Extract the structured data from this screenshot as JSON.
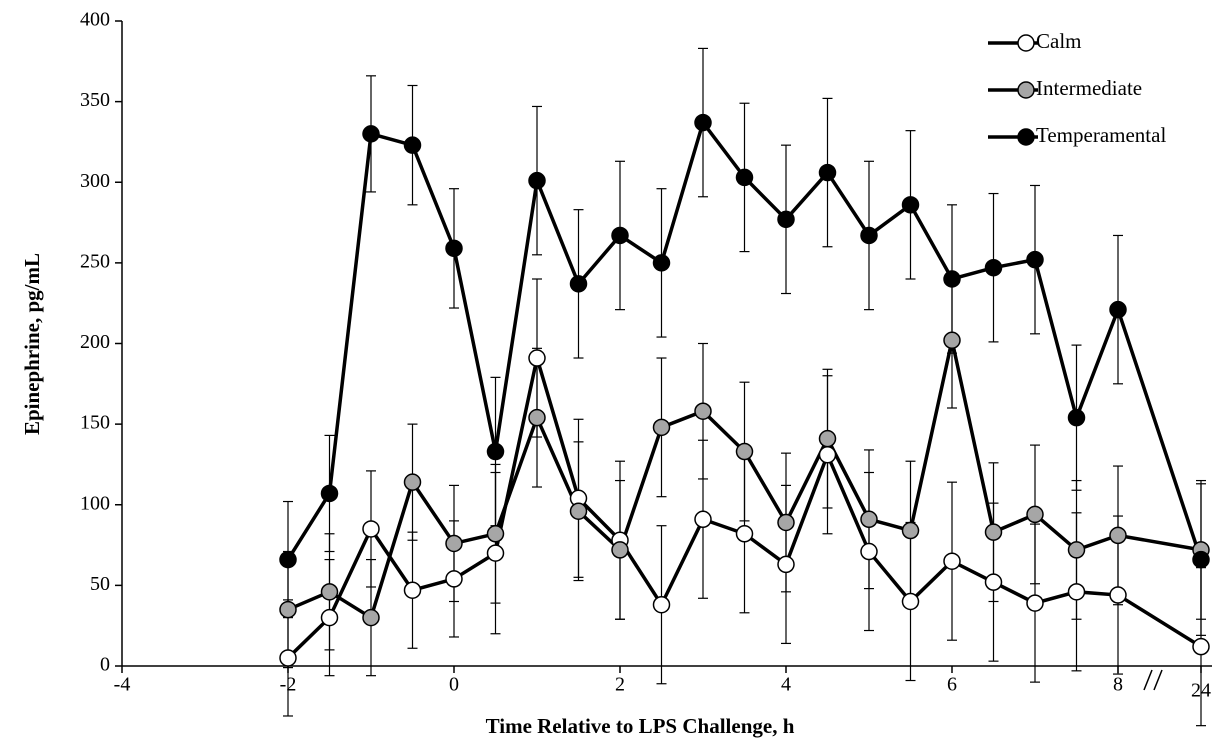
{
  "chart_data": {
    "type": "line",
    "xlabel": "Time Relative to LPS Challenge, h",
    "ylabel": "Epinephrine, pg/mL",
    "x": [
      -2,
      -1.5,
      -1,
      -0.5,
      0,
      0.5,
      1,
      1.5,
      2,
      2.5,
      3,
      3.5,
      4,
      4.5,
      5,
      5.5,
      6,
      6.5,
      7,
      7.5,
      8,
      24
    ],
    "x_break": [
      8,
      24
    ],
    "series": [
      {
        "name": "Calm",
        "color": "#ffffff",
        "values": [
          5,
          30,
          85,
          47,
          54,
          70,
          191,
          104,
          78,
          38,
          91,
          82,
          63,
          131,
          71,
          40,
          65,
          52,
          39,
          46,
          44,
          12
        ],
        "errors": [
          36,
          36,
          36,
          36,
          36,
          50,
          49,
          49,
          49,
          49,
          49,
          49,
          49,
          49,
          49,
          49,
          49,
          49,
          49,
          49,
          49,
          49
        ]
      },
      {
        "name": "Intermediate",
        "color": "#a6a6a6",
        "values": [
          35,
          46,
          30,
          114,
          76,
          82,
          154,
          96,
          72,
          148,
          158,
          133,
          89,
          141,
          91,
          84,
          202,
          83,
          94,
          72,
          81,
          72
        ],
        "errors": [
          36,
          36,
          36,
          36,
          36,
          43,
          43,
          43,
          43,
          43,
          42,
          43,
          43,
          43,
          43,
          43,
          42,
          43,
          43,
          43,
          43,
          43
        ]
      },
      {
        "name": "Temperamental",
        "color": "#000000",
        "values": [
          66,
          107,
          330,
          323,
          259,
          133,
          301,
          237,
          267,
          250,
          337,
          303,
          277,
          306,
          267,
          286,
          240,
          247,
          252,
          154,
          221,
          66
        ],
        "errors": [
          36,
          36,
          36,
          37,
          37,
          46,
          46,
          46,
          46,
          46,
          46,
          46,
          46,
          46,
          46,
          46,
          46,
          46,
          46,
          45,
          46,
          47
        ]
      }
    ],
    "xlim": [
      -4,
      24
    ],
    "xticks": [
      -4,
      -2,
      0,
      2,
      4,
      6,
      8,
      24
    ],
    "ylim": [
      0,
      400
    ],
    "yticks": [
      0,
      50,
      100,
      150,
      200,
      250,
      300,
      350,
      400
    ],
    "grid": false,
    "legend": "upper right"
  }
}
